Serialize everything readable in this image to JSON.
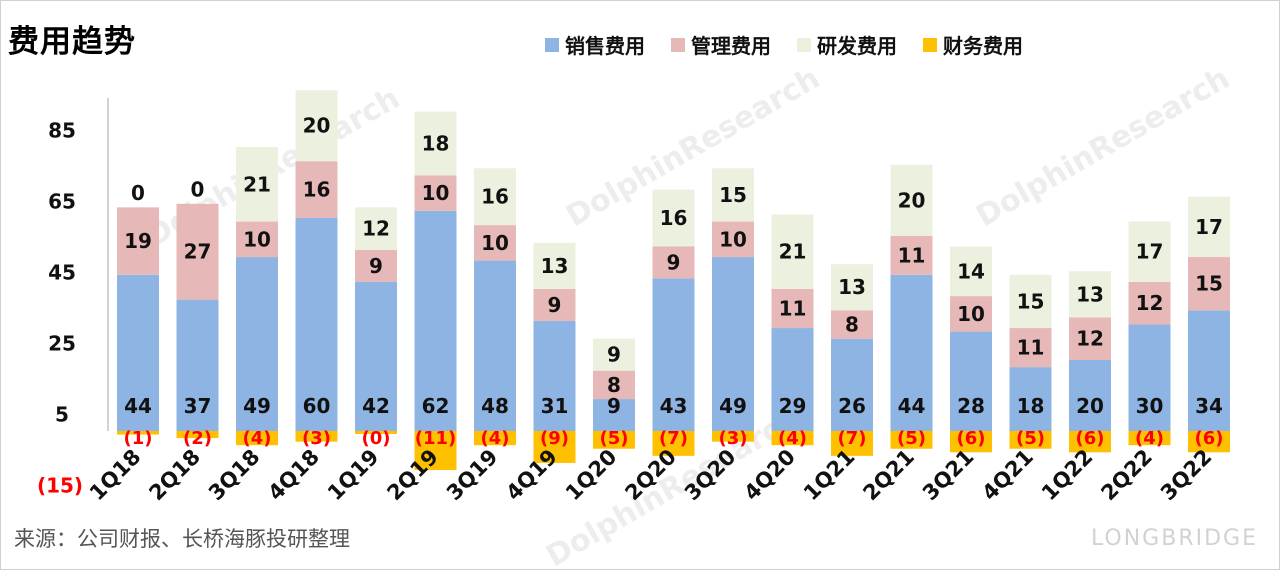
{
  "title": "费用趋势",
  "source": "来源：公司财报、长桥海豚投研整理",
  "brand": "LONGBRIDGE",
  "watermark": "DolphinResearch",
  "colors": {
    "sales": "#8EB4E3",
    "admin": "#E6B9B8",
    "rd": "#EBF1DE",
    "finance": "#FFC000",
    "negative_label": "#FF0000"
  },
  "chart_data": {
    "type": "bar",
    "stacked": true,
    "categories": [
      "1Q18",
      "2Q18",
      "3Q18",
      "4Q18",
      "1Q19",
      "2Q19",
      "3Q19",
      "4Q19",
      "1Q20",
      "2Q20",
      "3Q20",
      "4Q20",
      "1Q21",
      "2Q21",
      "3Q21",
      "4Q21",
      "1Q22",
      "2Q22",
      "3Q22"
    ],
    "series": [
      {
        "name": "销售费用",
        "color_key": "sales",
        "values": [
          44,
          37,
          49,
          60,
          42,
          62,
          48,
          31,
          9,
          43,
          49,
          29,
          26,
          44,
          28,
          18,
          20,
          30,
          34
        ],
        "labels": [
          "44",
          "37",
          "49",
          "60",
          "42",
          "62",
          "48",
          "31",
          "9",
          "43",
          "49",
          "29",
          "26",
          "44",
          "28",
          "18",
          "20",
          "30",
          "34"
        ]
      },
      {
        "name": "管理费用",
        "color_key": "admin",
        "values": [
          19,
          27,
          10,
          16,
          9,
          10,
          10,
          9,
          8,
          9,
          10,
          11,
          8,
          11,
          10,
          11,
          12,
          12,
          15
        ],
        "labels": [
          "19",
          "27",
          "10",
          "16",
          "9",
          "10",
          "10",
          "9",
          "8",
          "9",
          "10",
          "11",
          "8",
          "11",
          "10",
          "11",
          "12",
          "12",
          "15"
        ]
      },
      {
        "name": "研发费用",
        "color_key": "rd",
        "values": [
          0,
          0,
          21,
          20,
          12,
          18,
          16,
          13,
          9,
          16,
          15,
          21,
          13,
          20,
          14,
          15,
          13,
          17,
          17
        ],
        "labels": [
          "0",
          "0",
          "21",
          "20",
          "12",
          "18",
          "16",
          "13",
          "9",
          "16",
          "15",
          "21",
          "13",
          "20",
          "14",
          "15",
          "13",
          "17",
          "17"
        ]
      },
      {
        "name": "财务费用",
        "color_key": "finance",
        "values": [
          -1,
          -2,
          -4,
          -3,
          -0.2,
          -11,
          -4,
          -9,
          -5,
          -7,
          -3,
          -4,
          -7,
          -5,
          -6,
          -5,
          -6,
          -4,
          -6
        ],
        "labels": [
          "(1)",
          "(2)",
          "(4)",
          "(3)",
          "(0)",
          "(11)",
          "(4)",
          "(9)",
          "(5)",
          "(7)",
          "(3)",
          "(4)",
          "(7)",
          "(5)",
          "(6)",
          "(5)",
          "(6)",
          "(4)",
          "(6)"
        ]
      }
    ],
    "y_ticks": [
      "85",
      "65",
      "45",
      "25",
      "5",
      "(15)"
    ],
    "y_tick_values": [
      85,
      65,
      45,
      25,
      5,
      -15
    ],
    "ylim": [
      -15,
      95
    ],
    "legend_position": "top-right",
    "grid": false
  }
}
